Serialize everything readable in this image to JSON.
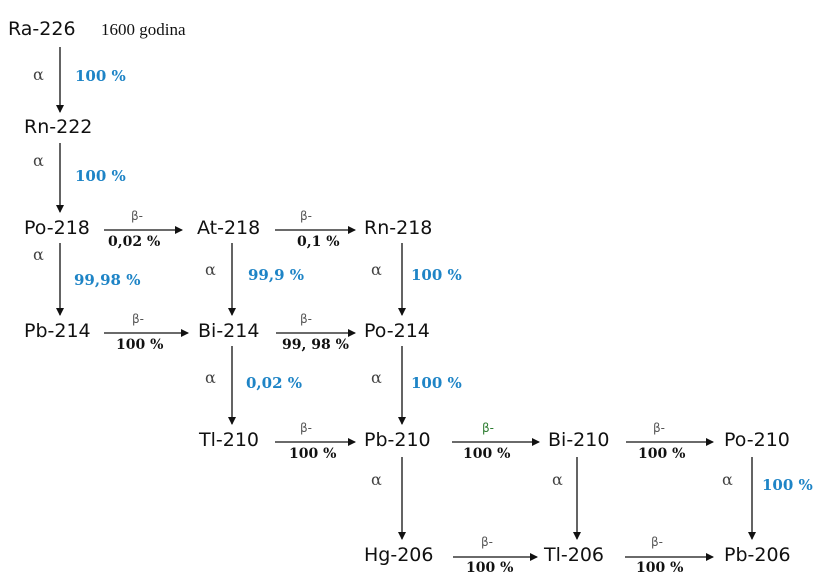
{
  "accent_color": "#1e84c6",
  "beta_color_default": "#555555",
  "beta_color_green": "#2e7d32",
  "nuclides": {
    "ra226": "Ra-226",
    "rn222": "Rn-222",
    "po218": "Po-218",
    "at218": "At-218",
    "rn218": "Rn-218",
    "pb214": "Pb-214",
    "bi214": "Bi-214",
    "po214": "Po-214",
    "tl210": "Tl-210",
    "pb210": "Pb-210",
    "bi210": "Bi-210",
    "po210": "Po-210",
    "hg206": "Hg-206",
    "tl206": "Tl-206",
    "pb206": "Pb-206"
  },
  "half_life": "1600 godina",
  "alpha_symbol": "α",
  "beta_symbol": "β-",
  "alpha_decays": [
    {
      "from": "ra226",
      "to": "rn222",
      "percent": "100 %"
    },
    {
      "from": "rn222",
      "to": "po218",
      "percent": "100 %"
    },
    {
      "from": "po218",
      "to": "pb214",
      "percent": "99,98 %"
    },
    {
      "from": "at218",
      "to": "bi214",
      "percent": "99,9 %"
    },
    {
      "from": "rn218",
      "to": "po214",
      "percent": "100 %"
    },
    {
      "from": "bi214",
      "to": "tl210",
      "percent": "0,02 %"
    },
    {
      "from": "po214",
      "to": "pb210",
      "percent": "100 %"
    },
    {
      "from": "pb210",
      "to": "hg206",
      "percent": ""
    },
    {
      "from": "bi210",
      "to": "tl206",
      "percent": ""
    },
    {
      "from": "po210",
      "to": "pb206",
      "percent": "100 %"
    }
  ],
  "beta_decays": [
    {
      "from": "po218",
      "to": "at218",
      "percent": "0,02 %"
    },
    {
      "from": "at218",
      "to": "rn218",
      "percent": "0,1 %"
    },
    {
      "from": "pb214",
      "to": "bi214",
      "percent": "100 %"
    },
    {
      "from": "bi214",
      "to": "po214",
      "percent": "99, 98 %"
    },
    {
      "from": "tl210",
      "to": "pb210",
      "percent": "100 %"
    },
    {
      "from": "pb210",
      "to": "bi210",
      "percent": "100 %",
      "green": true
    },
    {
      "from": "bi210",
      "to": "po210",
      "percent": "100 %"
    },
    {
      "from": "hg206",
      "to": "tl206",
      "percent": "100 %"
    },
    {
      "from": "tl206",
      "to": "pb206",
      "percent": "100 %"
    }
  ]
}
